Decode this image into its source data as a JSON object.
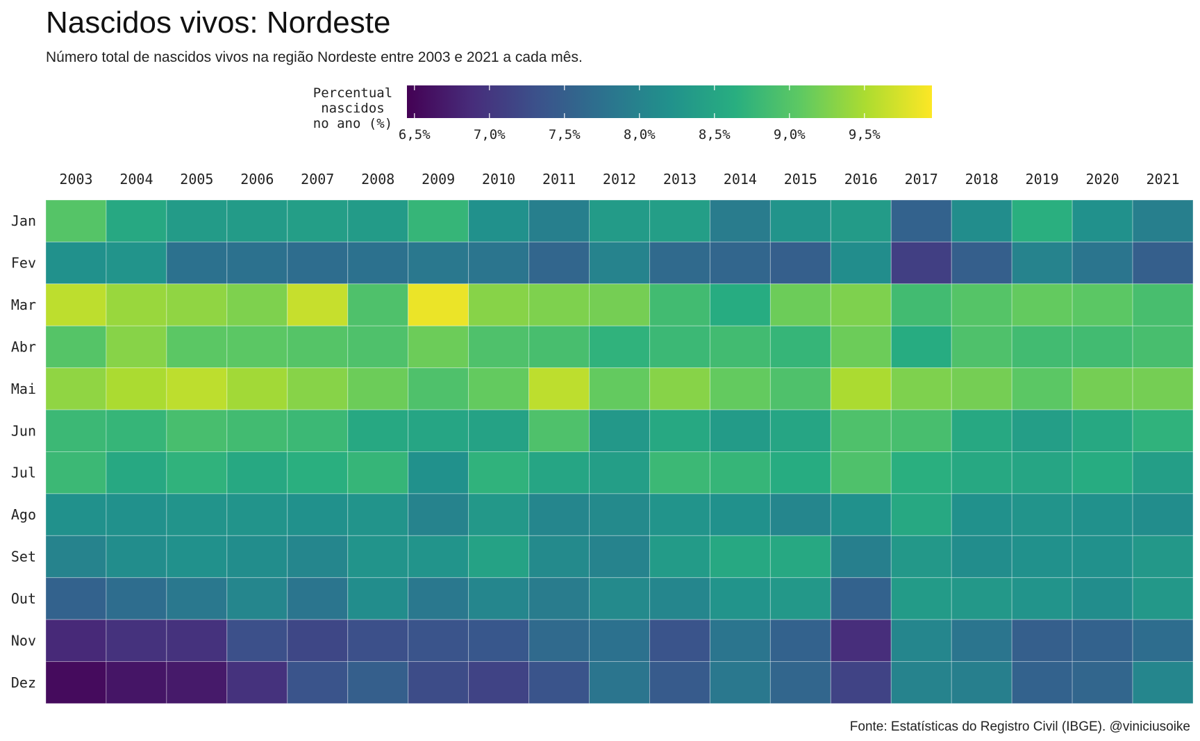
{
  "chart_data": {
    "type": "heatmap",
    "title": "Nascidos vivos: Nordeste",
    "subtitle": "Número total de nascidos vivos na região Nordeste entre 2003 e 2021 a cada mês.",
    "caption": "Fonte: Estatísticas do Registro Civil (IBGE). @viniciusoike",
    "legend": {
      "title_lines": [
        "Percentual",
        "nascidos",
        "no ano (%)"
      ],
      "ticks": [
        6.5,
        7.0,
        7.5,
        8.0,
        8.5,
        9.0,
        9.5
      ],
      "tick_labels": [
        "6,5%",
        "7,0%",
        "7,5%",
        "8,0%",
        "8,5%",
        "9,0%",
        "9,5%"
      ],
      "range": [
        6.45,
        9.95
      ],
      "placement": "top",
      "palette": [
        "#440154",
        "#472D7B",
        "#3B528B",
        "#2C728E",
        "#21918C",
        "#28AE80",
        "#5EC962",
        "#ADDC30",
        "#FDE725"
      ]
    },
    "x_categories": [
      "2003",
      "2004",
      "2005",
      "2006",
      "2007",
      "2008",
      "2009",
      "2010",
      "2011",
      "2012",
      "2013",
      "2014",
      "2015",
      "2016",
      "2017",
      "2018",
      "2019",
      "2020",
      "2021"
    ],
    "y_categories": [
      "Jan",
      "Fev",
      "Mar",
      "Abr",
      "Mai",
      "Jun",
      "Jul",
      "Ago",
      "Set",
      "Out",
      "Nov",
      "Dez"
    ],
    "values": [
      [
        9.0,
        8.55,
        8.35,
        8.35,
        8.4,
        8.35,
        8.75,
        8.2,
        7.95,
        8.35,
        8.4,
        7.9,
        8.25,
        8.35,
        7.55,
        8.15,
        8.65,
        8.2,
        7.95
      ],
      [
        8.2,
        8.25,
        7.75,
        7.75,
        7.7,
        7.75,
        7.85,
        7.8,
        7.6,
        8.0,
        7.65,
        7.6,
        7.5,
        8.15,
        7.1,
        7.5,
        8.0,
        7.8,
        7.5
      ],
      [
        9.6,
        9.4,
        9.35,
        9.25,
        9.65,
        8.95,
        9.85,
        9.3,
        9.25,
        9.2,
        8.85,
        8.6,
        9.15,
        9.25,
        8.85,
        9.0,
        9.1,
        9.05,
        8.9
      ],
      [
        9.0,
        9.3,
        9.05,
        9.05,
        9.0,
        8.95,
        9.15,
        8.95,
        8.9,
        8.7,
        8.8,
        8.85,
        8.75,
        9.15,
        8.6,
        8.95,
        8.85,
        8.85,
        8.9
      ],
      [
        9.35,
        9.5,
        9.6,
        9.45,
        9.3,
        9.15,
        8.95,
        9.1,
        9.6,
        9.1,
        9.3,
        9.1,
        8.95,
        9.5,
        9.25,
        9.2,
        9.05,
        9.2,
        9.2
      ],
      [
        8.8,
        8.75,
        8.9,
        8.85,
        8.8,
        8.55,
        8.5,
        8.45,
        8.95,
        8.3,
        8.55,
        8.35,
        8.5,
        8.95,
        8.9,
        8.55,
        8.4,
        8.55,
        8.7
      ],
      [
        8.8,
        8.55,
        8.7,
        8.55,
        8.65,
        8.75,
        8.2,
        8.7,
        8.5,
        8.4,
        8.8,
        8.75,
        8.6,
        8.95,
        8.65,
        8.55,
        8.5,
        8.6,
        8.4
      ],
      [
        8.2,
        8.2,
        8.25,
        8.25,
        8.2,
        8.25,
        8.0,
        8.3,
        8.05,
        8.1,
        8.25,
        8.2,
        8.05,
        8.2,
        8.55,
        8.2,
        8.25,
        8.2,
        8.15
      ],
      [
        8.0,
        8.15,
        8.2,
        8.15,
        8.05,
        8.25,
        8.25,
        8.45,
        8.1,
        8.0,
        8.35,
        8.55,
        8.55,
        7.95,
        8.3,
        8.15,
        8.2,
        8.2,
        8.3
      ],
      [
        7.55,
        7.7,
        7.85,
        8.05,
        7.8,
        8.15,
        7.85,
        8.05,
        7.9,
        8.1,
        8.05,
        8.25,
        8.3,
        7.55,
        8.35,
        8.3,
        8.25,
        8.15,
        8.3
      ],
      [
        6.85,
        6.95,
        6.95,
        7.3,
        7.2,
        7.3,
        7.35,
        7.4,
        7.65,
        7.75,
        7.35,
        7.8,
        7.55,
        6.9,
        8.05,
        7.8,
        7.5,
        7.55,
        7.7
      ],
      [
        6.55,
        6.65,
        6.7,
        6.95,
        7.35,
        7.5,
        7.25,
        7.15,
        7.35,
        7.8,
        7.45,
        7.85,
        7.6,
        7.15,
        8.0,
        7.95,
        7.55,
        7.6,
        8.05
      ]
    ]
  }
}
